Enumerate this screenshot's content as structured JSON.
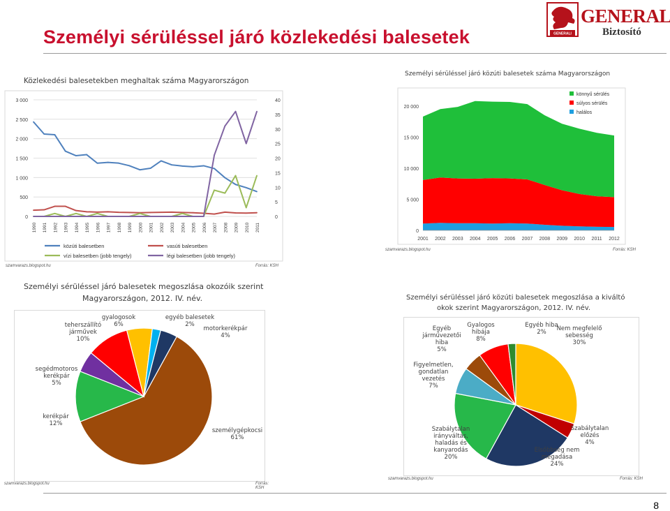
{
  "page": {
    "title": "Személyi sérüléssel járó közlekedési balesetek",
    "page_number": "8"
  },
  "logo": {
    "brand": "GENERALI",
    "subtitle": "Biztosító",
    "emblem_text": "GENERALI GROUP"
  },
  "colors": {
    "title": "#c8102e",
    "brand": "#b5121b"
  },
  "panels": {
    "line": {
      "title": "Közlekedési balesetekben meghaltak száma Magyarországon",
      "source_left": "szamvarazs.blogspot.hu",
      "source_right": "Forrás: KSH"
    },
    "area": {
      "title": "Személyi sérüléssel járó közúti balesetek száma Magyarországon",
      "source_left": "szamvarazs.blogspot.hu",
      "source_right": "Forrás: KSH"
    },
    "pie1": {
      "title_line1": "Személyi sérüléssel járó balesetek megoszlása okozóik szerint",
      "title_line2": "Magyarországon, 2012. IV. név.",
      "source_left": "szamvarazs.blogspot.hu",
      "source_right": "Forrás: KSH"
    },
    "pie2": {
      "title_line1": "Személyi sérüléssel járó közúti balesetek megoszlása a kiváltó",
      "title_line2": "okok szerint Magyarországon, 2012. IV. név.",
      "source_left": "szamvarazs.blogspot.hu",
      "source_right": "Forrás: KSH"
    }
  },
  "chart_data": [
    {
      "type": "line",
      "title": "Közlekedési balesetekben meghaltak száma Magyarországon",
      "categories": [
        "1990",
        "1991",
        "1992",
        "1993",
        "1994",
        "1995",
        "1996",
        "1997",
        "1998",
        "1999",
        "2000",
        "2001",
        "2002",
        "2003",
        "2004",
        "2005",
        "2006",
        "2007",
        "2008",
        "2009",
        "2010",
        "2011"
      ],
      "ylim": [
        0,
        3000
      ],
      "yticks": [
        "3 000",
        "2 500",
        "2 000",
        "1 500",
        "1 000",
        "500",
        "0"
      ],
      "y2lim": [
        0,
        40
      ],
      "y2ticks": [
        "40",
        "35",
        "30",
        "25",
        "20",
        "15",
        "10",
        "5",
        "0"
      ],
      "grid": true,
      "legend_position": "bottom",
      "series": [
        {
          "name": "közúti balesetben",
          "axis": "left",
          "color": "#4f81bd",
          "values": [
            2432,
            2120,
            2101,
            1678,
            1562,
            1589,
            1370,
            1391,
            1371,
            1306,
            1200,
            1239,
            1429,
            1326,
            1296,
            1278,
            1303,
            1232,
            996,
            822,
            740,
            638
          ]
        },
        {
          "name": "vasúti balesetben",
          "axis": "left",
          "color": "#c0504d",
          "values": [
            160,
            170,
            260,
            260,
            150,
            120,
            110,
            120,
            105,
            100,
            95,
            100,
            105,
            110,
            100,
            95,
            80,
            60,
            110,
            90,
            85,
            95
          ]
        },
        {
          "name": "vízi balesetben (jobb tengely)",
          "axis": "right",
          "color": "#9bbb59",
          "values": [
            0,
            0,
            1,
            0,
            1,
            0,
            1,
            0,
            0,
            0,
            1,
            0,
            0,
            0,
            1,
            0,
            0,
            9,
            8,
            14,
            3,
            14
          ]
        },
        {
          "name": "légi balesetben (jobb tengely)",
          "axis": "right",
          "color": "#8064a2",
          "values": [
            0,
            0,
            0,
            0,
            0,
            0,
            0,
            0,
            0,
            0,
            0,
            0,
            0,
            0,
            0,
            0,
            0,
            21,
            31,
            36,
            25,
            36
          ]
        }
      ]
    },
    {
      "type": "area",
      "title": "Személyi sérüléssel járó közúti balesetek száma Magyarországon",
      "categories": [
        "2001",
        "2002",
        "2003",
        "2004",
        "2005",
        "2006",
        "2007",
        "2008",
        "2009",
        "2010",
        "2011",
        "2012"
      ],
      "ylim": [
        0,
        22000
      ],
      "yticks": [
        "20 000",
        "15 000",
        "10 000",
        "5 000",
        "0"
      ],
      "legend_position": "top-right",
      "series": [
        {
          "name": "halálos",
          "color": "#1e9fe0",
          "values": [
            1100,
            1200,
            1150,
            1150,
            1100,
            1150,
            1100,
            900,
            750,
            650,
            580,
            550
          ]
        },
        {
          "name": "súlyos sérülés",
          "color": "#ff0000",
          "values": [
            7000,
            7300,
            7200,
            7150,
            7300,
            7200,
            7100,
            6400,
            5700,
            5200,
            4900,
            4800
          ]
        },
        {
          "name": "könnyű sérülés",
          "color": "#1fbf3a",
          "values": [
            10200,
            11000,
            11500,
            12500,
            12300,
            12300,
            12100,
            11200,
            10700,
            10500,
            10200,
            9900
          ]
        }
      ]
    },
    {
      "type": "pie",
      "title": "Személyi sérüléssel járó balesetek megoszlása okozóik szerint Magyarországon, 2012. IV. név.",
      "slices": [
        {
          "label": "személygépkocsi",
          "value": 61,
          "text": "61%",
          "color": "#9c4a0a"
        },
        {
          "label": "kerékpár",
          "value": 12,
          "text": "12%",
          "color": "#27b84a"
        },
        {
          "label": "segédmotoros kerékpár",
          "value": 5,
          "text": "5%",
          "color": "#7030a0"
        },
        {
          "label": "teherszállító járművek",
          "value": 10,
          "text": "10%",
          "color": "#ff0000"
        },
        {
          "label": "gyalogosok",
          "value": 6,
          "text": "6%",
          "color": "#ffc000"
        },
        {
          "label": "egyéb balesetek",
          "value": 2,
          "text": "2%",
          "color": "#00b0f0"
        },
        {
          "label": "motorkerékpár",
          "value": 4,
          "text": "4%",
          "color": "#1f3864"
        }
      ]
    },
    {
      "type": "pie",
      "title": "Személyi sérüléssel járó közúti balesetek megoszlása a kiváltó okok szerint Magyarországon, 2012. IV. név.",
      "slices": [
        {
          "label": "Nem megfelelő sebesség",
          "value": 30,
          "text": "30%",
          "color": "#ffc000"
        },
        {
          "label": "Szabálytalan előzés",
          "value": 4,
          "text": "4%",
          "color": "#c00000"
        },
        {
          "label": "Elsőbbség nem megadása",
          "value": 24,
          "text": "24%",
          "color": "#1f3864"
        },
        {
          "label": "Szabálytalan irányváltás, haladás és kanyarodás",
          "value": 20,
          "text": "20%",
          "color": "#27b84a"
        },
        {
          "label": "Figyelmetlen, gondatlan vezetés",
          "value": 7,
          "text": "7%",
          "color": "#4bacc6"
        },
        {
          "label": "Egyéb járművezetői hiba",
          "value": 5,
          "text": "5%",
          "color": "#9c4a0a"
        },
        {
          "label": "Gyalogos hibája",
          "value": 8,
          "text": "8%",
          "color": "#ff0000"
        },
        {
          "label": "Egyéb hiba",
          "value": 2,
          "text": "2%",
          "color": "#2e8b2e"
        }
      ]
    }
  ]
}
